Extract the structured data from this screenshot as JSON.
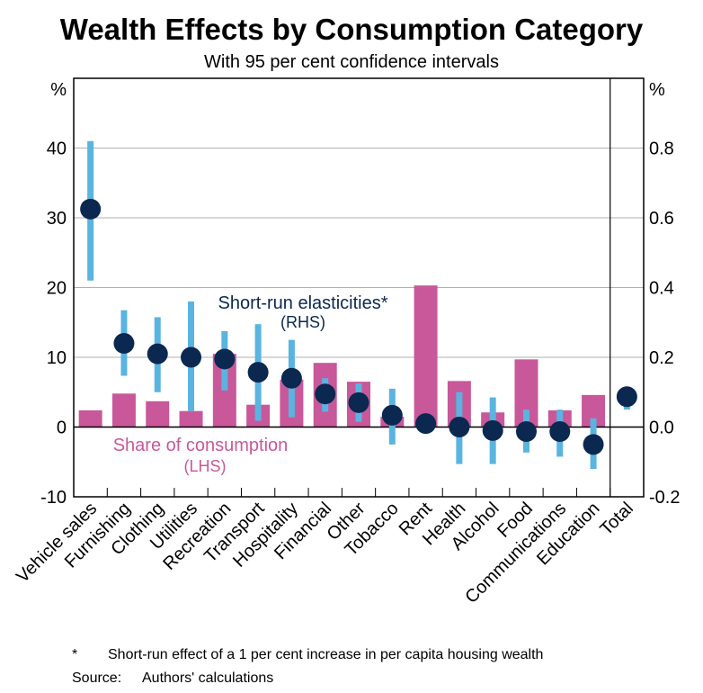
{
  "chart_data": {
    "type": "bar",
    "title": "Wealth Effects by Consumption Category",
    "subtitle": "With 95 per cent confidence intervals",
    "left_axis": {
      "unit": "%",
      "ylim": [
        -10,
        50
      ],
      "ticks": [
        -10,
        0,
        10,
        20,
        30,
        40
      ]
    },
    "right_axis": {
      "unit": "%",
      "ylim": [
        -0.2,
        1.0
      ],
      "ticks": [
        "-0.2",
        "0.0",
        "0.2",
        "0.4",
        "0.6",
        "0.8"
      ]
    },
    "categories": [
      "Vehicle sales",
      "Furnishing",
      "Clothing",
      "Utilities",
      "Recreation",
      "Transport",
      "Hospitality",
      "Financial",
      "Other",
      "Tobacco",
      "Rent",
      "Health",
      "Alcohol",
      "Food",
      "Communications",
      "Education",
      "Total"
    ],
    "series": [
      {
        "name": "Share of consumption",
        "label_line1": "Share of consumption",
        "label_line2": "(LHS)",
        "axis": "left",
        "type": "bar",
        "color": "#c8589a",
        "values": [
          2.4,
          4.8,
          3.7,
          2.3,
          10.5,
          3.2,
          6.8,
          9.2,
          6.5,
          1.5,
          20.3,
          6.6,
          2.1,
          9.7,
          2.4,
          4.6,
          null
        ]
      },
      {
        "name": "Short-run elasticities*",
        "label_line1": "Short-run elasticities*",
        "label_line2": "(RHS)",
        "axis": "right",
        "type": "point",
        "color": "#0a2850",
        "ci_color": "#5ab4e0",
        "values": [
          0.625,
          0.24,
          0.21,
          0.2,
          0.195,
          0.157,
          0.14,
          0.095,
          0.07,
          0.034,
          0.01,
          0.0,
          -0.01,
          -0.013,
          -0.013,
          -0.05,
          0.087
        ],
        "ci_low": [
          0.42,
          0.147,
          0.1,
          0.046,
          0.105,
          0.018,
          0.028,
          0.044,
          0.015,
          -0.05,
          0.0,
          -0.106,
          -0.106,
          -0.073,
          -0.085,
          -0.12,
          0.05
        ],
        "ci_high": [
          0.82,
          0.335,
          0.315,
          0.36,
          0.275,
          0.295,
          0.25,
          0.14,
          0.125,
          0.11,
          0.02,
          0.1,
          0.085,
          0.05,
          0.05,
          0.025,
          0.1
        ]
      }
    ],
    "grid": true
  },
  "footnotes": {
    "star_mark": "*",
    "star_text": "Short-run effect of a 1 per cent increase in per capita housing wealth",
    "source_label": "Source:",
    "source_text": "Authors' calculations"
  }
}
